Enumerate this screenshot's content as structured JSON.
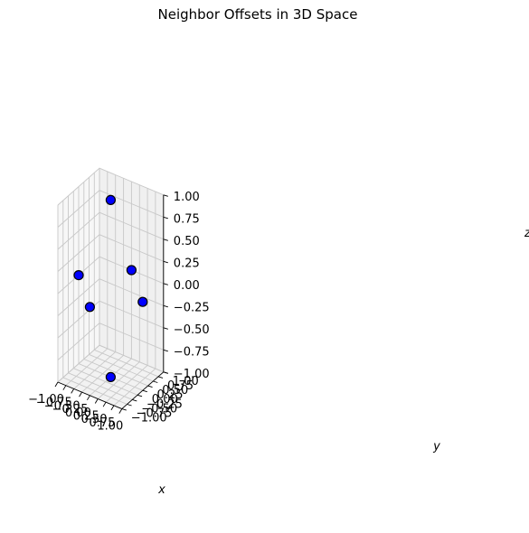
{
  "chart_data": {
    "type": "scatter",
    "projection": "3d",
    "title": "Neighbor Offsets in 3D Space",
    "xlabel": "x",
    "ylabel": "y",
    "zlabel": "z",
    "xlim": [
      -1.0,
      1.0
    ],
    "ylim": [
      -1.0,
      1.0
    ],
    "zlim": [
      -1.0,
      1.0
    ],
    "xticks": [
      "−1.00",
      "−0.75",
      "−0.50",
      "−0.25",
      "0.00",
      "0.25",
      "0.50",
      "0.75",
      "1.00"
    ],
    "yticks": [
      "−1.00",
      "−0.75",
      "−0.50",
      "−0.25",
      "0.00",
      "0.25",
      "0.50",
      "0.75",
      "1.00"
    ],
    "zticks": [
      "−1.00",
      "−0.75",
      "−0.50",
      "−0.25",
      "0.00",
      "0.25",
      "0.50",
      "0.75",
      "1.00"
    ],
    "grid": true,
    "marker_color": "#0000ff",
    "marker_edge_color": "#000000",
    "points": [
      {
        "x": -1,
        "y": 0,
        "z": 0
      },
      {
        "x": 1,
        "y": 0,
        "z": 0
      },
      {
        "x": 0,
        "y": -1,
        "z": 0
      },
      {
        "x": 0,
        "y": 1,
        "z": 0
      },
      {
        "x": 0,
        "y": 0,
        "z": -1
      },
      {
        "x": 0,
        "y": 0,
        "z": 1
      }
    ]
  }
}
